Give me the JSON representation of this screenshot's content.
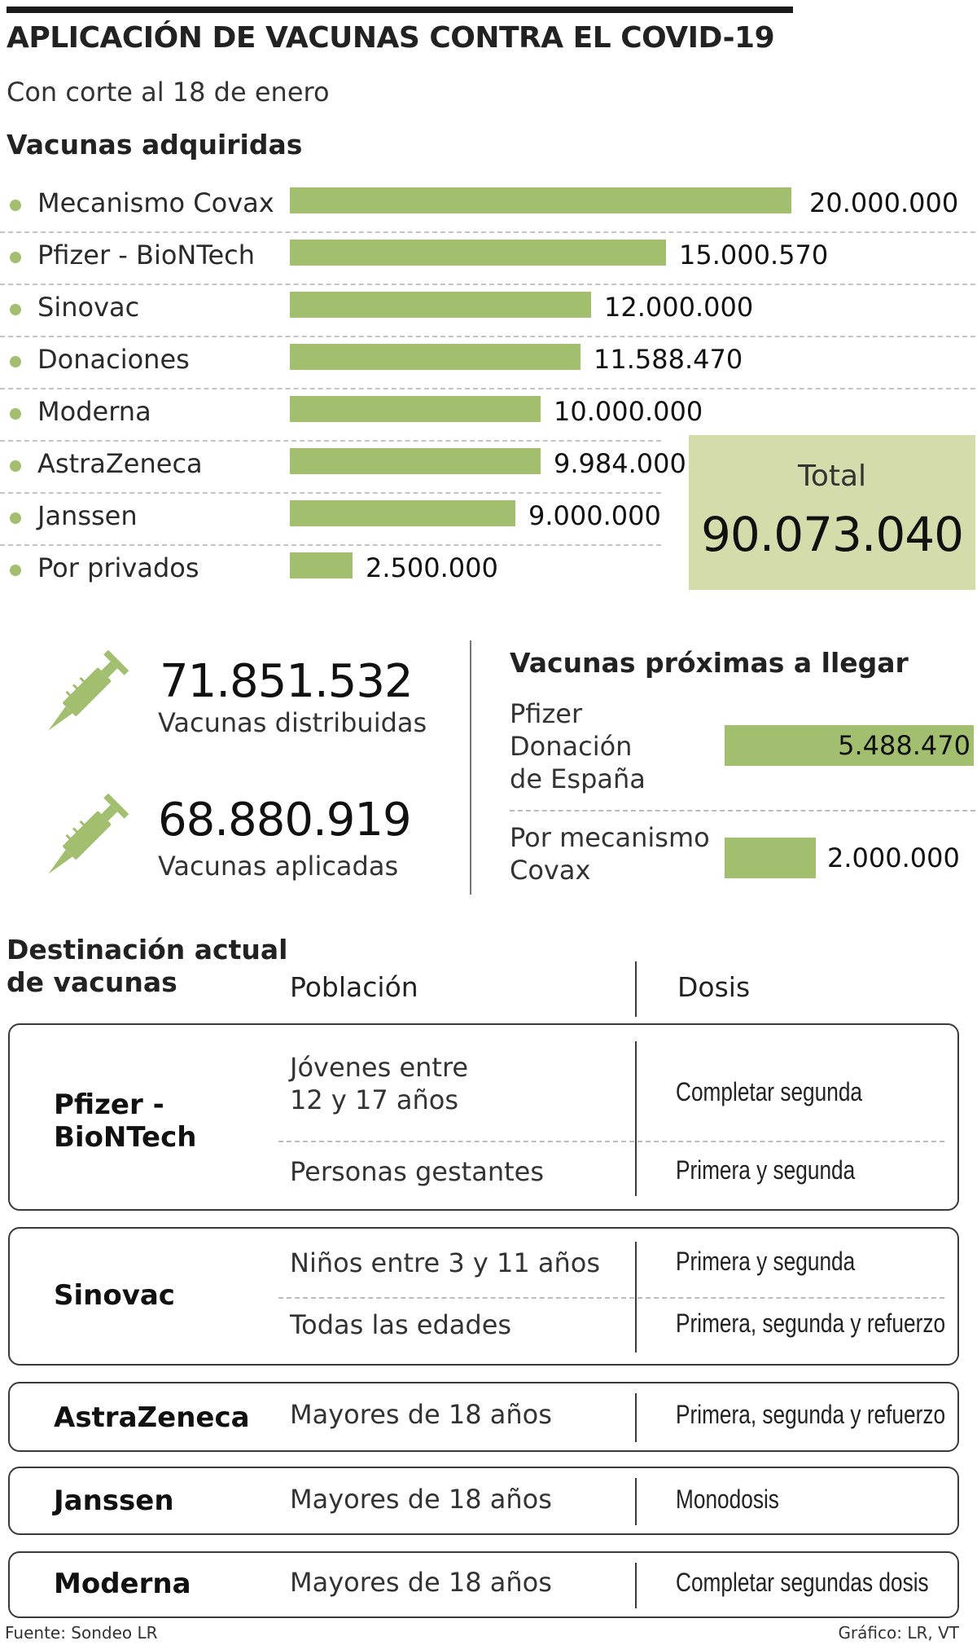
{
  "title": "APLICACIÓN DE VACUNAS CONTRA EL COVID-19",
  "subtitle": "Con corte al 18 de enero",
  "colors": {
    "bar": "#a2bf6f",
    "total_box": "#d3dcaa"
  },
  "acquired": {
    "heading": "Vacunas adquiridas",
    "total_label": "Total",
    "total_value": "90.073.040"
  },
  "chart_data": {
    "type": "bar",
    "orientation": "horizontal",
    "title": "Vacunas adquiridas",
    "categories": [
      "Mecanismo Covax",
      "Pfizer - BioNTech",
      "Sinovac",
      "Donaciones",
      "Moderna",
      "AstraZeneca",
      "Janssen",
      "Por privados"
    ],
    "values": [
      20000000,
      15000570,
      12000000,
      11588470,
      10000000,
      9984000,
      9000000,
      2500000
    ],
    "value_labels": [
      "20.000.000",
      "15.000.570",
      "12.000.000",
      "11.588.470",
      "10.000.000",
      "9.984.000",
      "9.000.000",
      "2.500.000"
    ]
  },
  "stats": [
    {
      "value": "71.851.532",
      "label": "Vacunas distribuidas",
      "icon": "syringe-icon"
    },
    {
      "value": "68.880.919",
      "label": "Vacunas aplicadas",
      "icon": "syringe-icon"
    }
  ],
  "upcoming": {
    "heading": "Vacunas próximas a llegar",
    "items": [
      {
        "lines": [
          "Pfizer",
          "Donación",
          "de España"
        ],
        "value": 5488470,
        "value_label": "5.488.470"
      },
      {
        "lines": [
          "Por mecanismo",
          "Covax"
        ],
        "value": 2000000,
        "value_label": "2.000.000"
      }
    ]
  },
  "destination": {
    "heading_lines": [
      "Destinación actual",
      "de vacunas"
    ],
    "col_population": "Población",
    "col_doses": "Dosis",
    "rows": [
      {
        "name_lines": [
          "Pfizer -",
          "BioNTech"
        ],
        "entries": [
          {
            "population_lines": [
              "Jóvenes entre",
              "12 y 17 años"
            ],
            "dose": "Completar segunda"
          },
          {
            "population_lines": [
              "Personas gestantes"
            ],
            "dose": "Primera y segunda"
          }
        ]
      },
      {
        "name_lines": [
          "Sinovac"
        ],
        "entries": [
          {
            "population_lines": [
              "Niños entre 3 y 11 años"
            ],
            "dose": "Primera y segunda"
          },
          {
            "population_lines": [
              "Todas las edades"
            ],
            "dose": "Primera, segunda y refuerzo"
          }
        ]
      },
      {
        "name_lines": [
          "AstraZeneca"
        ],
        "entries": [
          {
            "population_lines": [
              "Mayores de 18 años"
            ],
            "dose": "Primera, segunda y refuerzo"
          }
        ]
      },
      {
        "name_lines": [
          "Janssen"
        ],
        "entries": [
          {
            "population_lines": [
              "Mayores de 18 años"
            ],
            "dose": "Monodosis"
          }
        ]
      },
      {
        "name_lines": [
          "Moderna"
        ],
        "entries": [
          {
            "population_lines": [
              "Mayores de 18 años"
            ],
            "dose": "Completar segundas dosis"
          }
        ]
      }
    ]
  },
  "footer": {
    "source": "Fuente: Sondeo LR",
    "credit": "Gráfico: LR, VT"
  }
}
